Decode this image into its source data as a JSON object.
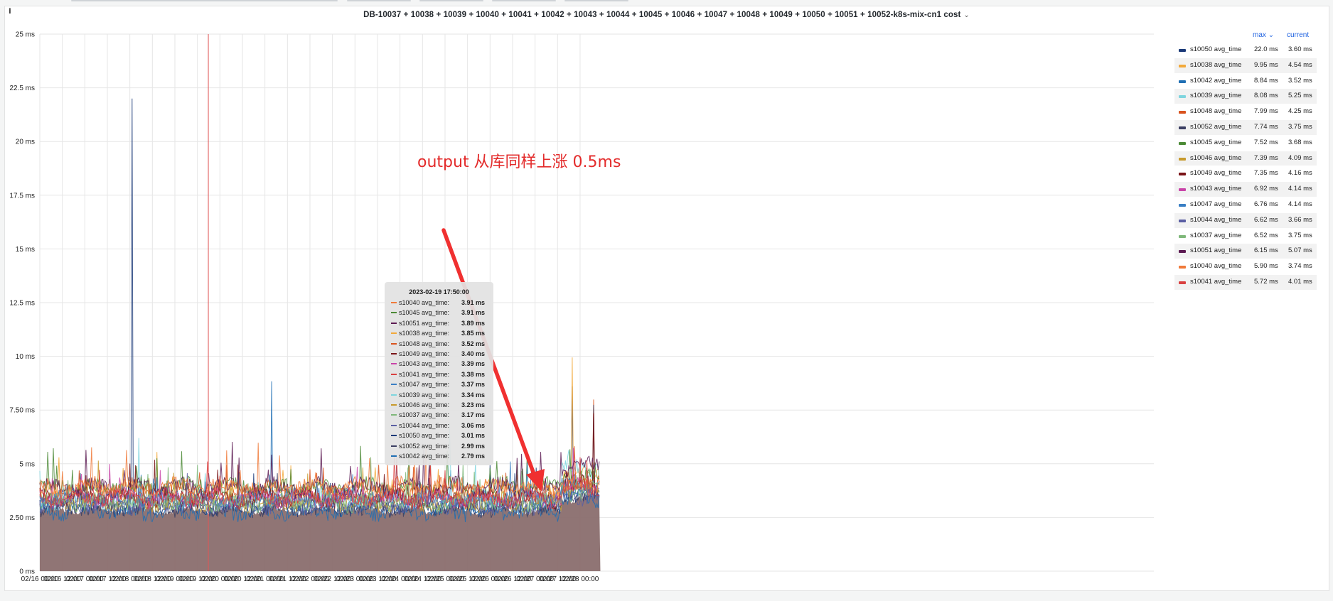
{
  "panel": {
    "title": "DB-10037 + 10038 + 10039 + 10040 + 10041 + 10042 + 10043 + 10044 + 10045 + 10046 + 10047 + 10048 + 10049 + 10050 + 10051 + 10052-k8s-mix-cn1 cost",
    "title_chevron": "⌄",
    "info_icon": "i"
  },
  "annotation": {
    "text": "output 从库同样上涨 0.5ms",
    "color": "#e32b2b"
  },
  "legend": {
    "col_max": "max",
    "col_max_chevron": "⌄",
    "col_current": "current",
    "rows": [
      {
        "name": "s10050 avg_time",
        "max": "22.0 ms",
        "current": "3.60 ms",
        "color": "#1b3a78"
      },
      {
        "name": "s10038 avg_time",
        "max": "9.95 ms",
        "current": "4.54 ms",
        "color": "#f2a93b"
      },
      {
        "name": "s10042 avg_time",
        "max": "8.84 ms",
        "current": "3.52 ms",
        "color": "#1f6fb4"
      },
      {
        "name": "s10039 avg_time",
        "max": "8.08 ms",
        "current": "5.25 ms",
        "color": "#7fd5de"
      },
      {
        "name": "s10048 avg_time",
        "max": "7.99 ms",
        "current": "4.25 ms",
        "color": "#d9531e"
      },
      {
        "name": "s10052 avg_time",
        "max": "7.74 ms",
        "current": "3.75 ms",
        "color": "#3b3f63"
      },
      {
        "name": "s10045 avg_time",
        "max": "7.52 ms",
        "current": "3.68 ms",
        "color": "#4b8a36"
      },
      {
        "name": "s10046 avg_time",
        "max": "7.39 ms",
        "current": "4.09 ms",
        "color": "#c79a2c"
      },
      {
        "name": "s10049 avg_time",
        "max": "7.35 ms",
        "current": "4.16 ms",
        "color": "#7a1418"
      },
      {
        "name": "s10043 avg_time",
        "max": "6.92 ms",
        "current": "4.14 ms",
        "color": "#c944a8"
      },
      {
        "name": "s10047 avg_time",
        "max": "6.76 ms",
        "current": "4.14 ms",
        "color": "#3a7fc4"
      },
      {
        "name": "s10044 avg_time",
        "max": "6.62 ms",
        "current": "3.66 ms",
        "color": "#5b5fa3"
      },
      {
        "name": "s10037 avg_time",
        "max": "6.52 ms",
        "current": "3.75 ms",
        "color": "#7fb87a"
      },
      {
        "name": "s10051 avg_time",
        "max": "6.15 ms",
        "current": "5.07 ms",
        "color": "#5c1a52"
      },
      {
        "name": "s10040 avg_time",
        "max": "5.90 ms",
        "current": "3.74 ms",
        "color": "#f07a3a"
      },
      {
        "name": "s10041 avg_time",
        "max": "5.72 ms",
        "current": "4.01 ms",
        "color": "#d94040"
      }
    ]
  },
  "tooltip": {
    "time": "2023-02-19 17:50:00",
    "rows": [
      {
        "name": "s10040 avg_time:",
        "value": "3.91 ms",
        "color": "#f07a3a"
      },
      {
        "name": "s10045 avg_time:",
        "value": "3.91 ms",
        "color": "#4b8a36"
      },
      {
        "name": "s10051 avg_time:",
        "value": "3.89 ms",
        "color": "#5c1a52"
      },
      {
        "name": "s10038 avg_time:",
        "value": "3.85 ms",
        "color": "#f2a93b"
      },
      {
        "name": "s10048 avg_time:",
        "value": "3.52 ms",
        "color": "#d9531e"
      },
      {
        "name": "s10049 avg_time:",
        "value": "3.40 ms",
        "color": "#7a1418"
      },
      {
        "name": "s10043 avg_time:",
        "value": "3.39 ms",
        "color": "#c944a8"
      },
      {
        "name": "s10041 avg_time:",
        "value": "3.38 ms",
        "color": "#d94040"
      },
      {
        "name": "s10047 avg_time:",
        "value": "3.37 ms",
        "color": "#3a7fc4"
      },
      {
        "name": "s10039 avg_time:",
        "value": "3.34 ms",
        "color": "#7fd5de"
      },
      {
        "name": "s10046 avg_time:",
        "value": "3.23 ms",
        "color": "#c79a2c"
      },
      {
        "name": "s10037 avg_time:",
        "value": "3.17 ms",
        "color": "#7fb87a"
      },
      {
        "name": "s10044 avg_time:",
        "value": "3.06 ms",
        "color": "#5b5fa3"
      },
      {
        "name": "s10050 avg_time:",
        "value": "3.01 ms",
        "color": "#1b3a78"
      },
      {
        "name": "s10052 avg_time:",
        "value": "2.99 ms",
        "color": "#3b3f63"
      },
      {
        "name": "s10042 avg_time:",
        "value": "2.79 ms",
        "color": "#1f6fb4"
      }
    ]
  },
  "chart_data": {
    "type": "area",
    "title": "DB-10037 + 10038 + 10039 + 10040 + 10041 + 10042 + 10043 + 10044 + 10045 + 10046 + 10047 + 10048 + 10049 + 10050 + 10051 + 10052-k8s-mix-cn1 cost",
    "y_ticks": [
      "0 ms",
      "2.50 ms",
      "5 ms",
      "7.50 ms",
      "10 ms",
      "12.5 ms",
      "15 ms",
      "17.5 ms",
      "20 ms",
      "22.5 ms",
      "25 ms"
    ],
    "ylim": [
      0,
      25
    ],
    "x_ticks": [
      "02/16 00:00",
      "02/16 12:00",
      "02/17 00:00",
      "02/17 12:00",
      "02/18 00:00",
      "02/18 12:00",
      "02/19 00:00",
      "02/19 12:00",
      "02/20 00:00",
      "02/20 12:00",
      "02/21 00:00",
      "02/21 12:00",
      "02/22 00:00",
      "02/22 12:00",
      "02/23 00:00",
      "02/23 12:00",
      "02/24 00:00",
      "02/24 12:00",
      "02/25 00:00",
      "02/25 12:00",
      "02/26 00:00",
      "02/26 12:00",
      "02/27 00:00",
      "02/27 12:00",
      "02/28 00:00"
    ],
    "x_range_days": [
      0,
      12.45
    ],
    "grid": true,
    "legend_position": "right",
    "cursor_time": "2023-02-19 17:50:00",
    "baseline_fill_color": "#8a6e6e",
    "series": [
      {
        "name": "s10050 avg_time",
        "color": "#1b3a78",
        "base_before": 3.0,
        "base_after": 3.6,
        "spikes": [
          [
            2.05,
            22.0
          ],
          [
            11.82,
            8.6
          ]
        ]
      },
      {
        "name": "s10038 avg_time",
        "color": "#f2a93b",
        "base_before": 3.8,
        "base_after": 4.5,
        "spikes": [
          [
            11.82,
            9.95
          ]
        ]
      },
      {
        "name": "s10042 avg_time",
        "color": "#1f6fb4",
        "base_before": 2.8,
        "base_after": 3.4,
        "spikes": [
          [
            5.15,
            8.84
          ]
        ]
      },
      {
        "name": "s10039 avg_time",
        "color": "#7fd5de",
        "base_before": 3.3,
        "base_after": 4.8,
        "spikes": [
          [
            2.2,
            6.2
          ],
          [
            9.1,
            6.9
          ]
        ]
      },
      {
        "name": "s10048 avg_time",
        "color": "#d9531e",
        "base_before": 3.5,
        "base_after": 4.2,
        "spikes": [
          [
            12.3,
            7.99
          ]
        ]
      },
      {
        "name": "s10052 avg_time",
        "color": "#3b3f63",
        "base_before": 3.0,
        "base_after": 3.6,
        "spikes": [
          [
            12.3,
            7.74
          ]
        ]
      },
      {
        "name": "s10045 avg_time",
        "color": "#4b8a36",
        "base_before": 3.9,
        "base_after": 4.3,
        "spikes": [
          [
            2.15,
            4.9
          ],
          [
            9.05,
            5.6
          ]
        ]
      },
      {
        "name": "s10046 avg_time",
        "color": "#c79a2c",
        "base_before": 3.2,
        "base_after": 3.9,
        "spikes": []
      },
      {
        "name": "s10049 avg_time",
        "color": "#7a1418",
        "base_before": 3.4,
        "base_after": 4.0,
        "spikes": [
          [
            12.3,
            7.35
          ]
        ]
      },
      {
        "name": "s10043 avg_time",
        "color": "#c944a8",
        "base_before": 3.4,
        "base_after": 3.9,
        "spikes": []
      },
      {
        "name": "s10047 avg_time",
        "color": "#3a7fc4",
        "base_before": 3.4,
        "base_after": 3.9,
        "spikes": []
      },
      {
        "name": "s10044 avg_time",
        "color": "#5b5fa3",
        "base_before": 3.1,
        "base_after": 3.5,
        "spikes": []
      },
      {
        "name": "s10037 avg_time",
        "color": "#7fb87a",
        "base_before": 3.2,
        "base_after": 3.7,
        "spikes": []
      },
      {
        "name": "s10051 avg_time",
        "color": "#5c1a52",
        "base_before": 3.9,
        "base_after": 4.9,
        "spikes": []
      },
      {
        "name": "s10040 avg_time",
        "color": "#f07a3a",
        "base_before": 3.9,
        "base_after": 4.0,
        "spikes": []
      },
      {
        "name": "s10041 avg_time",
        "color": "#d94040",
        "base_before": 3.4,
        "base_after": 3.9,
        "spikes": []
      }
    ]
  }
}
